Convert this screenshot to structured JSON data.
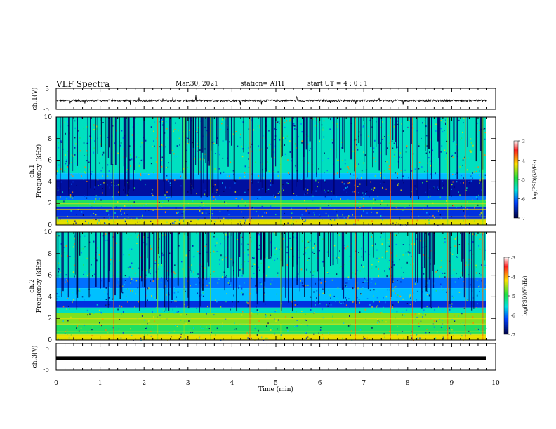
{
  "header": {
    "title": "VLF Spectra",
    "date": "Mar.30, 2021",
    "station": "station= ATH",
    "start_ut": "start UT =  4 : 0  : 1"
  },
  "chart_data": [
    {
      "type": "line",
      "panel": "waveform-ch1",
      "ylabel": "ch.1(V)",
      "ylim": [
        -5,
        5
      ],
      "yticks": [
        "5",
        "-5"
      ],
      "xlim": [
        0,
        10
      ],
      "trace_range_min": [
        0,
        9.8
      ],
      "description_level": -0.8
    },
    {
      "type": "heatmap",
      "panel": "spectrogram-ch1",
      "ylabel_top": "ch.1",
      "ylabel": "Frequency (kHz)",
      "ylim": [
        0,
        10
      ],
      "yticks": [
        "0",
        "2",
        "4",
        "6",
        "8",
        "10"
      ],
      "xlim": [
        0,
        10
      ],
      "colorbar": {
        "label": "log(PSD)(V²/Hz)",
        "range": [
          -7,
          -3
        ],
        "ticks": [
          "-3",
          "-4",
          "-5",
          "-6",
          "-7"
        ]
      }
    },
    {
      "type": "heatmap",
      "panel": "spectrogram-ch2",
      "ylabel_top": "ch.2",
      "ylabel": "Frequency (kHz)",
      "ylim": [
        0,
        10
      ],
      "yticks": [
        "0",
        "2",
        "4",
        "6",
        "8",
        "10"
      ],
      "xlim": [
        0,
        10
      ],
      "colorbar": {
        "label": "log(PSD)(V²/Hz)",
        "range": [
          -7,
          -3
        ],
        "ticks": [
          "-3",
          "-4",
          "-5",
          "-6",
          "-7"
        ]
      }
    },
    {
      "type": "line",
      "panel": "waveform-ch3",
      "ylabel": "ch.3(V)",
      "ylim": [
        -5,
        5
      ],
      "yticks": [
        "5",
        "-5"
      ],
      "xlim": [
        0,
        10
      ],
      "level": -0.5,
      "xlabel": "Time (min)",
      "xticks": [
        "0",
        "1",
        "2",
        "3",
        "4",
        "5",
        "6",
        "7",
        "8",
        "9",
        "10"
      ]
    }
  ]
}
